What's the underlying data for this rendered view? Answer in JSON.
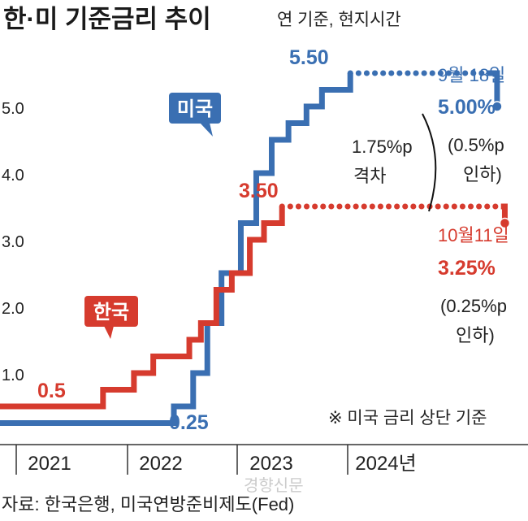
{
  "chart_data": {
    "type": "line",
    "title": "한·미 기준금리 추이",
    "subtitle": "연 기준, 현지시간",
    "x_labels": [
      "2021",
      "2022",
      "2023",
      "2024년"
    ],
    "y_ticks": [
      "1.0",
      "2.0",
      "3.0",
      "4.0",
      "5.0"
    ],
    "ylim": [
      0,
      6
    ],
    "series": [
      {
        "name": "미국",
        "color": "#3a6fb2",
        "note": "미국 금리 상단 기준",
        "steps": [
          {
            "t": 2021.0,
            "v": 0.25
          },
          {
            "t": 2022.2,
            "v": 0.5
          },
          {
            "t": 2022.35,
            "v": 1.0
          },
          {
            "t": 2022.46,
            "v": 1.75
          },
          {
            "t": 2022.57,
            "v": 2.5
          },
          {
            "t": 2022.72,
            "v": 3.25
          },
          {
            "t": 2022.84,
            "v": 4.0
          },
          {
            "t": 2022.96,
            "v": 4.5
          },
          {
            "t": 2023.09,
            "v": 4.75
          },
          {
            "t": 2023.23,
            "v": 5.0
          },
          {
            "t": 2023.35,
            "v": 5.25
          },
          {
            "t": 2023.57,
            "v": 5.5
          }
        ],
        "last": {
          "t": 2024.71,
          "v": 5.0
        },
        "start_label": "0.25",
        "peak_label": "5.50",
        "end_date": "9월 18일",
        "end_value": "5.00%",
        "end_note_1": "(0.5%p",
        "end_note_2": "인하)"
      },
      {
        "name": "한국",
        "color": "#d63b2e",
        "steps": [
          {
            "t": 2021.0,
            "v": 0.5
          },
          {
            "t": 2021.65,
            "v": 0.75
          },
          {
            "t": 2021.89,
            "v": 1.0
          },
          {
            "t": 2022.04,
            "v": 1.25
          },
          {
            "t": 2022.32,
            "v": 1.5
          },
          {
            "t": 2022.41,
            "v": 1.75
          },
          {
            "t": 2022.53,
            "v": 2.25
          },
          {
            "t": 2022.65,
            "v": 2.5
          },
          {
            "t": 2022.79,
            "v": 3.0
          },
          {
            "t": 2022.9,
            "v": 3.25
          },
          {
            "t": 2023.04,
            "v": 3.5
          }
        ],
        "last": {
          "t": 2024.77,
          "v": 3.25
        },
        "start_label": "0.5",
        "peak_label": "3.50",
        "end_date": "10월11일",
        "end_value": "3.25%",
        "end_note_1": "(0.25%p",
        "end_note_2": "인하)"
      }
    ],
    "gap_label_1": "1.75%p",
    "gap_label_2": "격차",
    "footnote": "※ 미국 금리 상단 기준",
    "source": "자료: 한국은행, 미국연방준비제도(Fed)",
    "watermark": "경향신문"
  }
}
